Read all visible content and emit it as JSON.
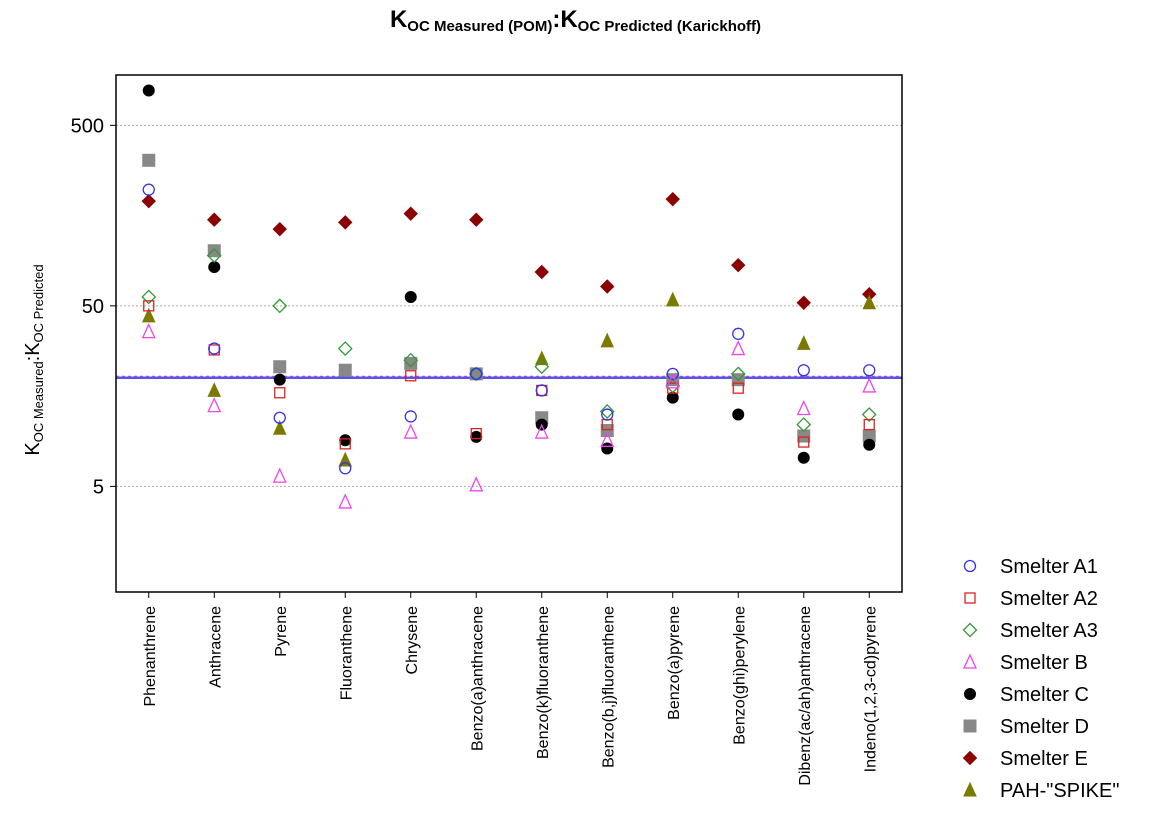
{
  "title": {
    "k1": "K",
    "sub1": "OC Measured (POM)",
    "sep": ":",
    "k2": "K",
    "sub2": "OC Predicted (Karickhoff)"
  },
  "ylabel": {
    "k1": "K",
    "sub1": "OC Measured",
    "sep": ":",
    "k2": "K",
    "sub2": "OC Predicted"
  },
  "chart_data": {
    "type": "scatter",
    "yscale": "log",
    "ylim": [
      1.3,
      950
    ],
    "yticks": [
      5,
      50,
      500
    ],
    "ytick_labels": [
      "5",
      "50",
      "500"
    ],
    "grid": "horizontal dotted at ticks",
    "reference_line": 20,
    "legend_position": "right, outside plot",
    "categories": [
      "Phenanthrene",
      "Anthracene",
      "Pyrene",
      "Fluoranthene",
      "Chrysene",
      "Benzo(a)anthracene",
      "Benzo(k)fluoranthene",
      "Benzo(b,j)fluoranthene",
      "Benzo(a)pyrene",
      "Benzo(ghi)perylene",
      "Dibenz(ac/ah)anthracene",
      "Indeno(1,2,3-cd)pyrene"
    ],
    "series": [
      {
        "name": "Smelter A1",
        "marker": "circle-open",
        "color": "#3333ee",
        "values": [
          220,
          29,
          12,
          6.3,
          12.2,
          21,
          17,
          12.5,
          21,
          35,
          22,
          22
        ]
      },
      {
        "name": "Smelter A2",
        "marker": "square-open",
        "color": "#dd2222",
        "values": [
          50,
          28.5,
          16.5,
          8.6,
          20.5,
          9.8,
          17,
          11,
          17.5,
          17.5,
          8.8,
          11
        ]
      },
      {
        "name": "Smelter A3",
        "marker": "diamond-open",
        "color": "#339933",
        "values": [
          56,
          95,
          50,
          29,
          25,
          21,
          23,
          13,
          18,
          21,
          11,
          12.5
        ]
      },
      {
        "name": "Smelter B",
        "marker": "triangle-open",
        "color": "#ee44ee",
        "values": [
          36,
          14,
          5.7,
          4.1,
          10,
          5.1,
          10,
          9,
          19,
          29,
          13.5,
          18
        ]
      },
      {
        "name": "Smelter C",
        "marker": "circle-filled",
        "color": "#000000",
        "values": [
          780,
          82,
          19.5,
          9,
          56,
          9.4,
          11,
          8.1,
          15.5,
          12.5,
          7.2,
          8.5
        ]
      },
      {
        "name": "Smelter D",
        "marker": "square-filled",
        "color": "#888888",
        "values": [
          320,
          101,
          23,
          22,
          24,
          21,
          12,
          10.2,
          19.5,
          19.5,
          9.5,
          9.5
        ]
      },
      {
        "name": "Smelter E",
        "marker": "diamond-filled",
        "color": "#8b0000",
        "values": [
          190,
          150,
          133,
          145,
          162,
          150,
          77,
          64,
          195,
          84,
          52,
          58
        ]
      },
      {
        "name": "PAH-\"SPIKE\"",
        "marker": "triangle-filled",
        "color": "#7a7a00",
        "values": [
          44,
          17,
          10.5,
          7,
          null,
          null,
          25.5,
          32,
          54,
          null,
          31,
          52
        ]
      }
    ]
  }
}
